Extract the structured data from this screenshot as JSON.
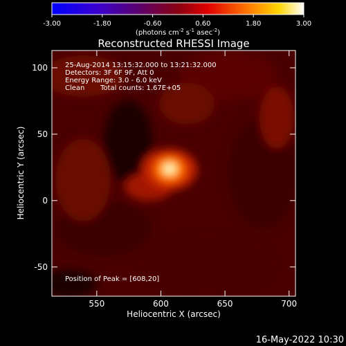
{
  "colors": {
    "background": "#000000",
    "foreground": "#ffffff",
    "colortable": "red-temperature"
  },
  "colorbar": {
    "min": -3.0,
    "max": 3.0,
    "ticks": [
      "-3.00",
      "-1.80",
      "-0.60",
      "0.60",
      "1.80",
      "3.00"
    ],
    "units_prefix": "(photons cm",
    "units_exp1": "-2",
    "units_mid": " s",
    "units_exp2": "-1",
    "units_mid2": " asec",
    "units_exp3": "-2",
    "units_suffix": ")"
  },
  "chart_data": {
    "type": "heatmap",
    "title": "Reconstructed RHESSI Image",
    "xlabel": "Heliocentric X (arcsec)",
    "ylabel": "Heliocentric Y (arcsec)",
    "xlim": [
      515,
      705
    ],
    "ylim": [
      -72,
      113
    ],
    "xticks": [
      "550",
      "600",
      "650",
      "700"
    ],
    "yticks": [
      "-50",
      "0",
      "50",
      "100"
    ],
    "xtick_values": [
      550,
      600,
      650,
      700
    ],
    "ytick_values": [
      -50,
      0,
      50,
      100
    ],
    "peak": [
      608,
      20
    ],
    "annotations": {
      "time_range": "25-Aug-2014 13:15:32.000 to 13:21:32.000",
      "detectors": "Detectors: 3F 6F 9F, Att 0",
      "energy": "Energy Range: 3.0 - 6.0 keV",
      "clean": "Clean",
      "counts": "Total counts: 1.67E+05",
      "peak_label": "Position of Peak = [608,20]"
    }
  },
  "footer": {
    "date": "16-May-2022 10:30"
  }
}
